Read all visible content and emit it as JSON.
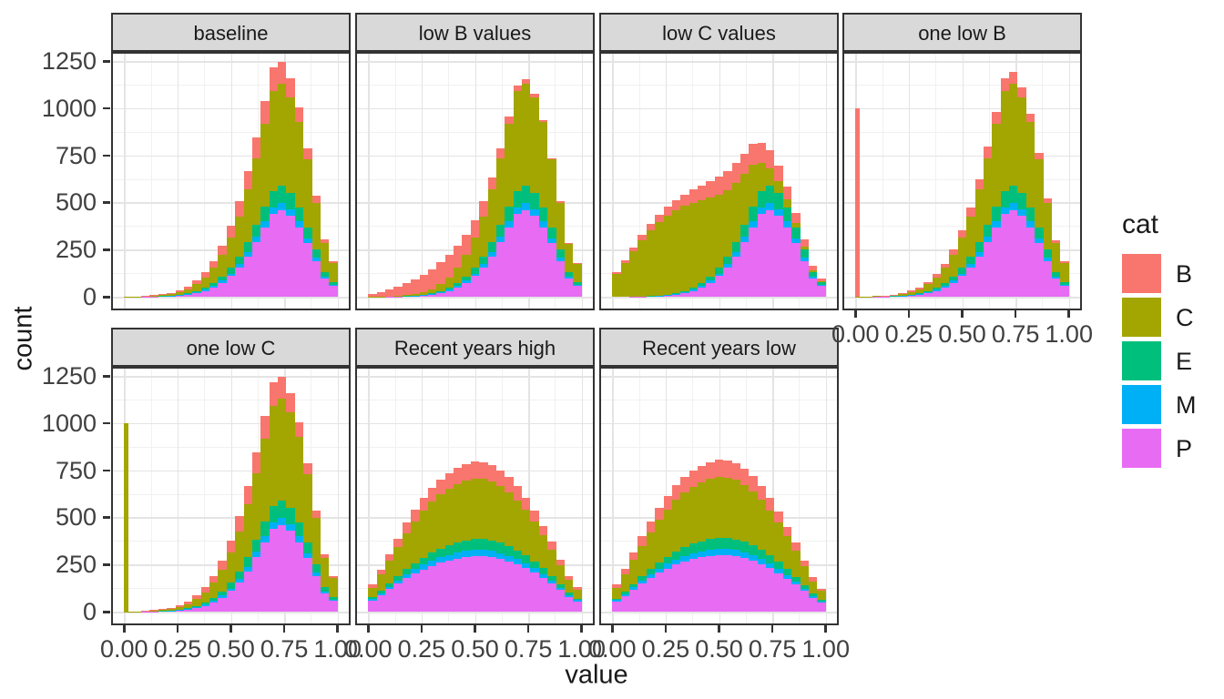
{
  "chart_data": {
    "type": "bar",
    "subtype": "faceted-stacked-histogram",
    "title": "",
    "xlabel": "value",
    "ylabel": "count",
    "xlim": [
      -0.061,
      1.061
    ],
    "ylim": [
      -70,
      1300
    ],
    "grid": "on",
    "legend_position": "right",
    "bin_width": 0.04,
    "bin_start_center": 0.02,
    "stack_order_bottom_to_top": [
      "P",
      "M",
      "E",
      "C",
      "B"
    ],
    "series_colors": {
      "B": "#F8766D",
      "C": "#A3A500",
      "E": "#00BF7D",
      "M": "#00B0F6",
      "P": "#E76BF3"
    },
    "x_ticks": [
      {
        "v": 0.0,
        "label": "0.00"
      },
      {
        "v": 0.25,
        "label": "0.25"
      },
      {
        "v": 0.5,
        "label": "0.50"
      },
      {
        "v": 0.75,
        "label": "0.75"
      },
      {
        "v": 1.0,
        "label": "1.00"
      }
    ],
    "y_ticks": [
      {
        "v": 0,
        "label": "0"
      },
      {
        "v": 250,
        "label": "250"
      },
      {
        "v": 500,
        "label": "500"
      },
      {
        "v": 750,
        "label": "750"
      },
      {
        "v": 1000,
        "label": "1000"
      },
      {
        "v": 1250,
        "label": "1250"
      }
    ],
    "x_minor": [
      0.125,
      0.375,
      0.625,
      0.875
    ],
    "y_minor": [
      125,
      375,
      625,
      875,
      1125
    ],
    "theme": {
      "strip_fill": "#d9d9d9",
      "panel_border": "#333333",
      "grid_major": "#e4e4e4",
      "grid_minor": "#f1f1f1",
      "tick_label_color": "#404040",
      "text_color": "#1a1a1a"
    },
    "legend": {
      "title": "cat",
      "items": [
        {
          "label": "B",
          "color": "#F8766D"
        },
        {
          "label": "C",
          "color": "#A3A500"
        },
        {
          "label": "E",
          "color": "#00BF7D"
        },
        {
          "label": "M",
          "color": "#00B0F6"
        },
        {
          "label": "P",
          "color": "#E76BF3"
        }
      ]
    },
    "facets": [
      {
        "title": "baseline",
        "row": 0,
        "col": 0,
        "spike": null,
        "series": {
          "P": [
            0,
            0,
            1,
            2,
            3,
            5,
            8,
            12,
            20,
            32,
            50,
            75,
            110,
            155,
            215,
            290,
            370,
            440,
            460,
            430,
            370,
            285,
            190,
            100,
            60
          ],
          "M": [
            0,
            0,
            0,
            0,
            1,
            1,
            2,
            3,
            4,
            6,
            8,
            11,
            14,
            18,
            23,
            28,
            32,
            36,
            38,
            36,
            32,
            26,
            18,
            10,
            6
          ],
          "E": [
            0,
            0,
            0,
            1,
            1,
            2,
            3,
            5,
            8,
            12,
            16,
            22,
            30,
            40,
            52,
            64,
            76,
            86,
            90,
            84,
            74,
            58,
            42,
            24,
            12
          ],
          "C": [
            1,
            1,
            2,
            3,
            5,
            8,
            14,
            22,
            35,
            55,
            80,
            115,
            160,
            215,
            280,
            355,
            440,
            530,
            545,
            510,
            450,
            360,
            250,
            150,
            100
          ],
          "B": [
            0,
            0,
            1,
            2,
            3,
            5,
            8,
            12,
            18,
            25,
            35,
            48,
            62,
            78,
            95,
            110,
            120,
            125,
            113,
            98,
            78,
            58,
            38,
            22,
            12
          ]
        }
      },
      {
        "title": "low B values",
        "row": 0,
        "col": 1,
        "spike": null,
        "series": {
          "P": [
            0,
            0,
            1,
            2,
            3,
            5,
            8,
            12,
            20,
            32,
            50,
            75,
            110,
            155,
            215,
            290,
            370,
            440,
            460,
            430,
            370,
            285,
            190,
            100,
            60
          ],
          "M": [
            0,
            0,
            0,
            0,
            1,
            1,
            2,
            3,
            4,
            6,
            8,
            11,
            14,
            18,
            23,
            28,
            32,
            36,
            38,
            36,
            32,
            26,
            18,
            10,
            6
          ],
          "E": [
            0,
            0,
            0,
            1,
            1,
            2,
            3,
            5,
            8,
            12,
            16,
            22,
            30,
            40,
            52,
            64,
            76,
            86,
            90,
            84,
            74,
            58,
            42,
            24,
            12
          ],
          "C": [
            1,
            1,
            2,
            3,
            5,
            8,
            14,
            22,
            35,
            55,
            80,
            115,
            160,
            215,
            280,
            355,
            440,
            530,
            545,
            510,
            450,
            360,
            250,
            150,
            100
          ],
          "B": [
            15,
            25,
            35,
            45,
            60,
            75,
            90,
            105,
            115,
            118,
            115,
            105,
            92,
            78,
            64,
            50,
            38,
            28,
            20,
            14,
            10,
            7,
            5,
            3,
            2
          ]
        }
      },
      {
        "title": "low C values",
        "row": 0,
        "col": 2,
        "spike": null,
        "series": {
          "P": [
            0,
            0,
            1,
            2,
            3,
            5,
            8,
            12,
            20,
            32,
            50,
            75,
            110,
            155,
            215,
            290,
            370,
            440,
            460,
            430,
            370,
            285,
            190,
            100,
            60
          ],
          "M": [
            0,
            0,
            0,
            0,
            1,
            1,
            2,
            3,
            4,
            6,
            8,
            11,
            14,
            18,
            23,
            28,
            32,
            36,
            38,
            36,
            32,
            26,
            18,
            10,
            6
          ],
          "E": [
            0,
            0,
            0,
            1,
            1,
            2,
            3,
            5,
            8,
            12,
            16,
            22,
            30,
            40,
            52,
            64,
            76,
            86,
            90,
            84,
            74,
            58,
            42,
            24,
            12
          ],
          "C": [
            120,
            180,
            240,
            300,
            350,
            390,
            420,
            440,
            450,
            450,
            440,
            420,
            390,
            355,
            315,
            270,
            225,
            150,
            95,
            62,
            40,
            25,
            15,
            8,
            5
          ],
          "B": [
            10,
            15,
            20,
            26,
            32,
            38,
            45,
            52,
            60,
            68,
            76,
            84,
            92,
            98,
            103,
            106,
            106,
            102,
            94,
            82,
            68,
            52,
            38,
            24,
            14
          ]
        }
      },
      {
        "title": "one low B",
        "row": 0,
        "col": 3,
        "spike": {
          "series": "B",
          "x": 0.01,
          "count": 1000,
          "width": 0.022
        },
        "series": {
          "P": [
            0,
            0,
            1,
            2,
            3,
            5,
            8,
            12,
            20,
            32,
            50,
            75,
            110,
            155,
            215,
            290,
            370,
            440,
            460,
            430,
            370,
            285,
            190,
            100,
            60
          ],
          "M": [
            0,
            0,
            0,
            0,
            1,
            1,
            2,
            3,
            4,
            6,
            8,
            11,
            14,
            18,
            23,
            28,
            32,
            36,
            38,
            36,
            32,
            26,
            18,
            10,
            6
          ],
          "E": [
            0,
            0,
            0,
            1,
            1,
            2,
            3,
            5,
            8,
            12,
            16,
            22,
            30,
            40,
            52,
            64,
            76,
            86,
            90,
            84,
            74,
            58,
            42,
            24,
            12
          ],
          "C": [
            1,
            1,
            2,
            3,
            5,
            8,
            14,
            22,
            35,
            55,
            80,
            115,
            160,
            215,
            280,
            355,
            440,
            530,
            545,
            510,
            450,
            360,
            250,
            150,
            100
          ],
          "B": [
            0,
            0,
            0,
            1,
            2,
            3,
            5,
            8,
            12,
            16,
            22,
            30,
            38,
            45,
            52,
            58,
            62,
            64,
            60,
            52,
            42,
            32,
            22,
            14,
            10
          ]
        }
      },
      {
        "title": "one low C",
        "row": 1,
        "col": 0,
        "spike": {
          "series": "C",
          "x": 0.01,
          "count": 1000,
          "width": 0.022
        },
        "series": {
          "P": [
            0,
            0,
            1,
            2,
            3,
            5,
            8,
            12,
            20,
            32,
            50,
            75,
            110,
            155,
            215,
            290,
            370,
            440,
            460,
            430,
            370,
            285,
            190,
            100,
            60
          ],
          "M": [
            0,
            0,
            0,
            0,
            1,
            1,
            2,
            3,
            4,
            6,
            8,
            11,
            14,
            18,
            23,
            28,
            32,
            36,
            38,
            36,
            32,
            26,
            18,
            10,
            6
          ],
          "E": [
            0,
            0,
            0,
            1,
            1,
            2,
            3,
            5,
            8,
            12,
            16,
            22,
            30,
            40,
            52,
            64,
            76,
            86,
            90,
            84,
            74,
            58,
            42,
            24,
            12
          ],
          "C": [
            1,
            1,
            2,
            3,
            5,
            8,
            14,
            22,
            35,
            55,
            80,
            115,
            160,
            215,
            280,
            355,
            440,
            530,
            545,
            510,
            450,
            360,
            250,
            150,
            100
          ],
          "B": [
            0,
            0,
            1,
            2,
            3,
            5,
            8,
            12,
            18,
            25,
            35,
            48,
            62,
            78,
            95,
            110,
            120,
            125,
            113,
            98,
            78,
            58,
            38,
            22,
            12
          ]
        }
      },
      {
        "title": "Recent years high",
        "row": 1,
        "col": 1,
        "spike": null,
        "series": {
          "P": [
            60,
            90,
            120,
            150,
            180,
            205,
            225,
            245,
            260,
            272,
            282,
            290,
            295,
            295,
            290,
            280,
            268,
            252,
            232,
            208,
            180,
            150,
            115,
            80,
            55
          ],
          "M": [
            8,
            10,
            13,
            16,
            19,
            22,
            25,
            27,
            29,
            31,
            32,
            33,
            34,
            34,
            33,
            32,
            30,
            28,
            26,
            23,
            20,
            17,
            13,
            10,
            7
          ],
          "E": [
            10,
            14,
            18,
            22,
            27,
            32,
            37,
            41,
            45,
            49,
            52,
            55,
            57,
            57,
            56,
            54,
            51,
            47,
            42,
            37,
            31,
            25,
            19,
            13,
            9
          ],
          "C": [
            50,
            85,
            120,
            155,
            190,
            220,
            248,
            270,
            288,
            300,
            310,
            316,
            320,
            318,
            312,
            300,
            285,
            265,
            240,
            210,
            175,
            140,
            100,
            65,
            45
          ],
          "B": [
            15,
            25,
            35,
            45,
            55,
            62,
            68,
            74,
            78,
            82,
            85,
            87,
            88,
            87,
            85,
            82,
            78,
            72,
            65,
            57,
            48,
            38,
            28,
            18,
            12
          ]
        }
      },
      {
        "title": "Recent years low",
        "row": 1,
        "col": 2,
        "spike": null,
        "series": {
          "P": [
            55,
            85,
            118,
            150,
            180,
            207,
            230,
            250,
            267,
            280,
            290,
            297,
            301,
            300,
            295,
            285,
            271,
            253,
            231,
            205,
            176,
            145,
            110,
            76,
            50
          ],
          "M": [
            7,
            10,
            13,
            16,
            19,
            22,
            25,
            27,
            29,
            31,
            32,
            33,
            34,
            34,
            33,
            32,
            30,
            28,
            25,
            23,
            19,
            16,
            13,
            9,
            6
          ],
          "E": [
            9,
            13,
            17,
            22,
            27,
            32,
            37,
            42,
            46,
            50,
            53,
            56,
            58,
            58,
            57,
            55,
            52,
            48,
            43,
            37,
            31,
            25,
            18,
            12,
            8
          ],
          "C": [
            55,
            90,
            128,
            163,
            196,
            226,
            252,
            274,
            291,
            304,
            313,
            319,
            322,
            320,
            314,
            302,
            286,
            266,
            240,
            210,
            176,
            140,
            100,
            66,
            46
          ],
          "B": [
            20,
            30,
            40,
            50,
            58,
            65,
            71,
            76,
            80,
            84,
            86,
            88,
            89,
            88,
            86,
            83,
            79,
            73,
            66,
            58,
            48,
            39,
            29,
            19,
            13
          ]
        }
      }
    ]
  }
}
